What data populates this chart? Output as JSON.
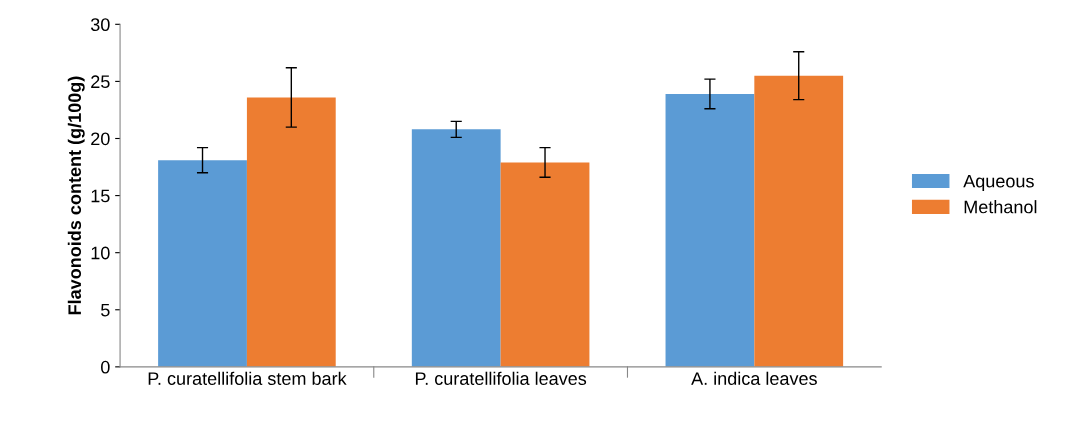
{
  "chart_data": {
    "type": "bar",
    "ylabel": "Flavonoids content (g/100g)",
    "categories": [
      "P. curatellifolia stem bark",
      "P. curatellifolia leaves",
      "A. indica leaves"
    ],
    "series": [
      {
        "name": "Aqueous",
        "color": "#5b9bd5",
        "values": [
          18.1,
          20.8,
          23.9
        ],
        "errors": [
          1.1,
          0.7,
          1.3
        ]
      },
      {
        "name": "Methanol",
        "color": "#ed7d31",
        "values": [
          23.6,
          17.9,
          25.5
        ],
        "errors": [
          2.6,
          1.3,
          2.1
        ]
      }
    ],
    "ylim": [
      0,
      30
    ],
    "yticks": [
      0,
      5,
      10,
      15,
      20,
      25,
      30
    ],
    "grid": false,
    "legend": "right"
  }
}
